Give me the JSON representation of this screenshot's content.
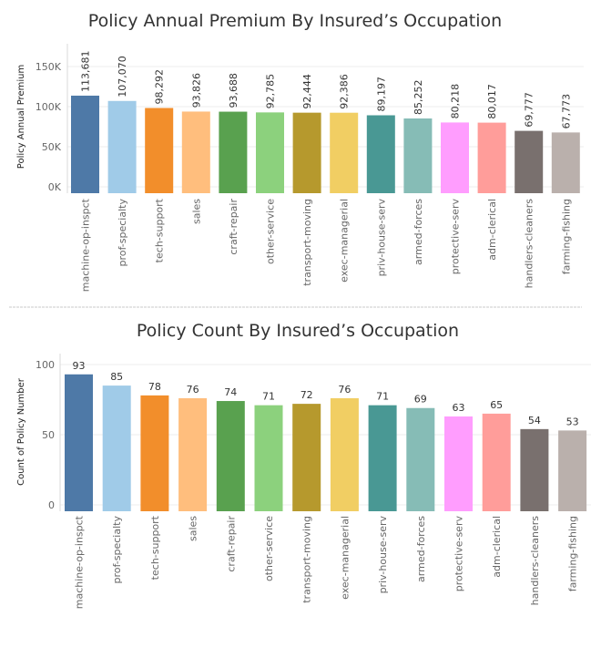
{
  "chart_data": [
    {
      "type": "bar",
      "title": "Policy Annual Premium By Insured’s Occupation",
      "xlabel": "",
      "ylabel": "Policy Annual Premium",
      "ylim": [
        0,
        160000
      ],
      "yticks": [
        0,
        50000,
        100000,
        150000
      ],
      "ytick_labels": [
        "0K",
        "50K",
        "100K",
        "150K"
      ],
      "grid": true,
      "categories": [
        "machine-op-inspct",
        "prof-specialty",
        "tech-support",
        "sales",
        "craft-repair",
        "other-service",
        "transport-moving",
        "exec-managerial",
        "priv-house-serv",
        "armed-forces",
        "protective-serv",
        "adm-clerical",
        "handlers-cleaners",
        "farming-fishing"
      ],
      "values": [
        113681,
        107070,
        98292,
        93826,
        93688,
        92785,
        92444,
        92386,
        89197,
        85252,
        80218,
        80017,
        69777,
        67773
      ],
      "labels": [
        "113,681",
        "107,070",
        "98,292",
        "93,826",
        "93,688",
        "92,785",
        "92,444",
        "92,386",
        "89,197",
        "85,252",
        "80,218",
        "80,017",
        "69,777",
        "67,773"
      ],
      "colors": [
        "#4e79a7",
        "#a0cbe8",
        "#f28e2b",
        "#ffbe7d",
        "#59a14f",
        "#8cd17d",
        "#b6992d",
        "#f1ce63",
        "#499894",
        "#86bcb6",
        "#ff9dfe",
        "#ff9d9a",
        "#79706e",
        "#bab0ac"
      ]
    },
    {
      "type": "bar",
      "title": "Policy Count By Insured’s Occupation",
      "xlabel": "",
      "ylabel": "Count of Policy Number",
      "ylim": [
        0,
        100
      ],
      "yticks": [
        0,
        50,
        100
      ],
      "ytick_labels": [
        "0",
        "50",
        "100"
      ],
      "grid": true,
      "categories": [
        "machine-op-inspct",
        "prof-specialty",
        "tech-support",
        "sales",
        "craft-repair",
        "other-service",
        "transport-moving",
        "exec-managerial",
        "priv-house-serv",
        "armed-forces",
        "protective-serv",
        "adm-clerical",
        "handlers-cleaners",
        "farming-fishing"
      ],
      "values": [
        93,
        85,
        78,
        76,
        74,
        71,
        72,
        76,
        71,
        69,
        63,
        65,
        54,
        53
      ],
      "labels": [
        "93",
        "85",
        "78",
        "76",
        "74",
        "71",
        "72",
        "76",
        "71",
        "69",
        "63",
        "65",
        "54",
        "53"
      ],
      "colors": [
        "#4e79a7",
        "#a0cbe8",
        "#f28e2b",
        "#ffbe7d",
        "#59a14f",
        "#8cd17d",
        "#b6992d",
        "#f1ce63",
        "#499894",
        "#86bcb6",
        "#ff9dfe",
        "#ff9d9a",
        "#79706e",
        "#bab0ac"
      ]
    }
  ]
}
